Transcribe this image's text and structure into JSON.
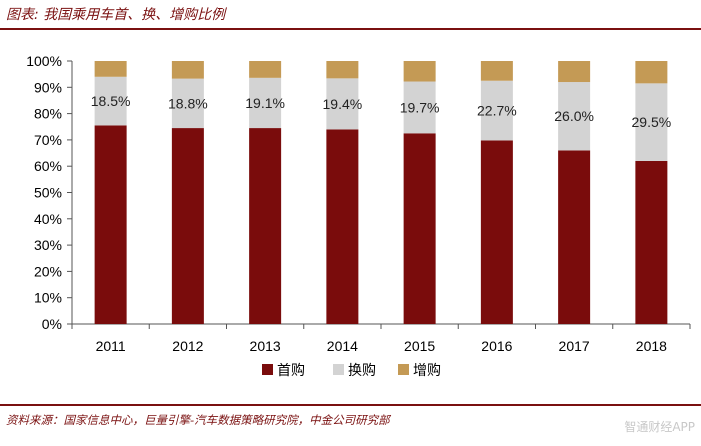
{
  "header": {
    "title": "图表: 我国乘用车首、换、增购比例"
  },
  "footer": {
    "source": "资料来源：国家信息中心，巨量引擎-汽车数据策略研究院，中金公司研究部",
    "watermark": "智通财经APP"
  },
  "colors": {
    "first_purchase": "#7a0c0c",
    "replacement": "#d3d3d3",
    "additional": "#c49a55",
    "accent": "#7a1010"
  },
  "chart_data": {
    "type": "bar",
    "stacked": true,
    "percent": true,
    "categories": [
      "2011",
      "2012",
      "2013",
      "2014",
      "2015",
      "2016",
      "2017",
      "2018"
    ],
    "series": [
      {
        "name": "首购",
        "values": [
          75.5,
          74.5,
          74.5,
          74.0,
          72.5,
          69.8,
          66.0,
          62.0
        ]
      },
      {
        "name": "换购",
        "values": [
          18.5,
          18.8,
          19.1,
          19.4,
          19.7,
          22.7,
          26.0,
          29.5
        ]
      },
      {
        "name": "增购",
        "values": [
          6.0,
          6.7,
          6.4,
          6.6,
          7.8,
          7.5,
          8.0,
          8.5
        ]
      }
    ],
    "data_labels": [
      "18.5%",
      "18.8%",
      "19.1%",
      "19.4%",
      "19.7%",
      "22.7%",
      "26.0%",
      "29.5%"
    ],
    "y_ticks": [
      "0%",
      "10%",
      "20%",
      "30%",
      "40%",
      "50%",
      "60%",
      "70%",
      "80%",
      "90%",
      "100%"
    ],
    "ylim": [
      0,
      100
    ],
    "legend_position": "bottom",
    "grid": false
  }
}
